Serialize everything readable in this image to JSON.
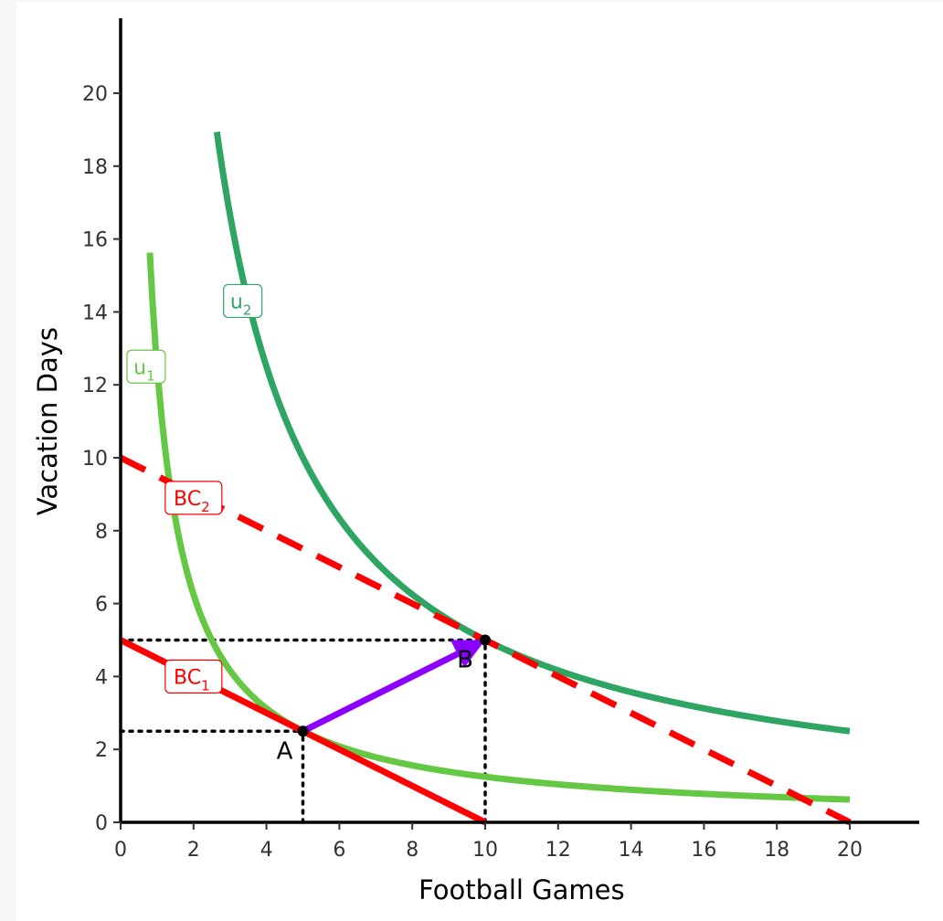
{
  "chart_data": {
    "type": "line",
    "xlabel": "Football Games",
    "ylabel": "Vacation Days",
    "xlim": [
      0,
      22
    ],
    "ylim": [
      0,
      22
    ],
    "xticks": [
      0,
      2,
      4,
      6,
      8,
      10,
      12,
      14,
      16,
      18,
      20
    ],
    "yticks": [
      0,
      2,
      4,
      6,
      8,
      10,
      12,
      14,
      16,
      18,
      20
    ],
    "grid": false,
    "series": [
      {
        "name": "u₁",
        "label_main": "u",
        "label_sub": "1",
        "style": "solid",
        "color": "#65c845",
        "function": "12.5 / x",
        "x_range": [
          0.8,
          20
        ]
      },
      {
        "name": "u₂",
        "label_main": "u",
        "label_sub": "2",
        "style": "solid",
        "color": "#2ea563",
        "function": "50 / x",
        "x_range": [
          2.64,
          20
        ]
      },
      {
        "name": "BC₁",
        "label_main": "BC",
        "label_sub": "1",
        "style": "solid",
        "color": "#ff0000",
        "points": [
          [
            0,
            5
          ],
          [
            10,
            0
          ]
        ]
      },
      {
        "name": "BC₂",
        "label_main": "BC",
        "label_sub": "2",
        "style": "dashed",
        "color": "#ff0000",
        "points": [
          [
            0,
            10
          ],
          [
            20,
            0
          ]
        ]
      }
    ],
    "points": [
      {
        "label": "A",
        "x": 5,
        "y": 2.5
      },
      {
        "label": "B",
        "x": 10,
        "y": 5
      }
    ],
    "arrow": {
      "from": [
        5,
        2.5
      ],
      "to": [
        10,
        5
      ],
      "color": "#8b00ff"
    },
    "guides": [
      {
        "from": [
          0,
          2.5
        ],
        "to": [
          5,
          2.5
        ]
      },
      {
        "from": [
          5,
          0
        ],
        "to": [
          5,
          2.5
        ]
      },
      {
        "from": [
          0,
          5
        ],
        "to": [
          10,
          5
        ]
      },
      {
        "from": [
          10,
          0
        ],
        "to": [
          10,
          5
        ]
      }
    ]
  }
}
